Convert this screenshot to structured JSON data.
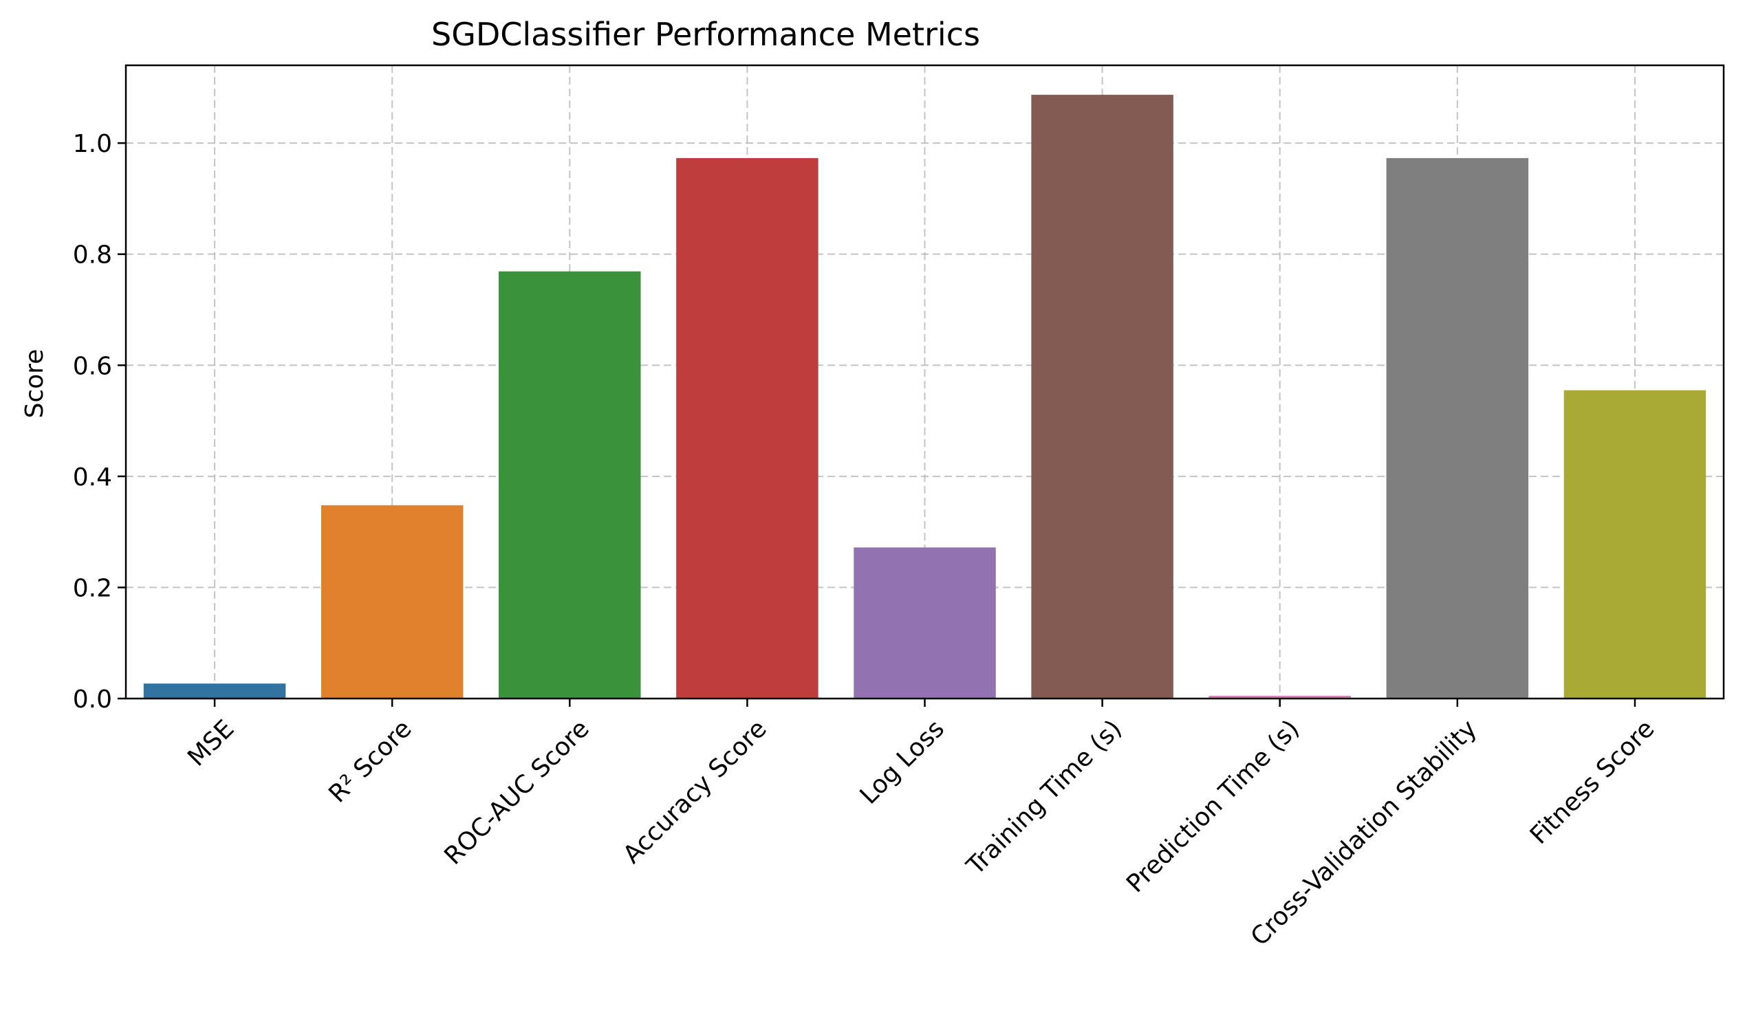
{
  "chart_data": {
    "type": "bar",
    "title": "SGDClassifier Performance Metrics",
    "xlabel": "",
    "ylabel": "Score",
    "ylim": [
      0,
      1.14
    ],
    "yticks": [
      0.0,
      0.2,
      0.4,
      0.6,
      0.8,
      1.0
    ],
    "ytick_labels": [
      "0.0",
      "0.2",
      "0.4",
      "0.6",
      "0.8",
      "1.0"
    ],
    "grid": true,
    "x_tick_rotation_deg": 45,
    "categories": [
      "MSE",
      "R² Score",
      "ROC-AUC Score",
      "Accuracy Score",
      "Log Loss",
      "Training Time (s)",
      "Prediction Time (s)",
      "Cross-Validation Stability",
      "Fitness Score"
    ],
    "values": [
      0.027,
      0.348,
      0.769,
      0.973,
      0.272,
      1.087,
      0.005,
      0.973,
      0.555
    ],
    "colors": [
      "#3274a1",
      "#e1812c",
      "#3a923a",
      "#c03d3e",
      "#9372b2",
      "#845b53",
      "#d684bd",
      "#7f7f7f",
      "#a9aa35"
    ]
  }
}
